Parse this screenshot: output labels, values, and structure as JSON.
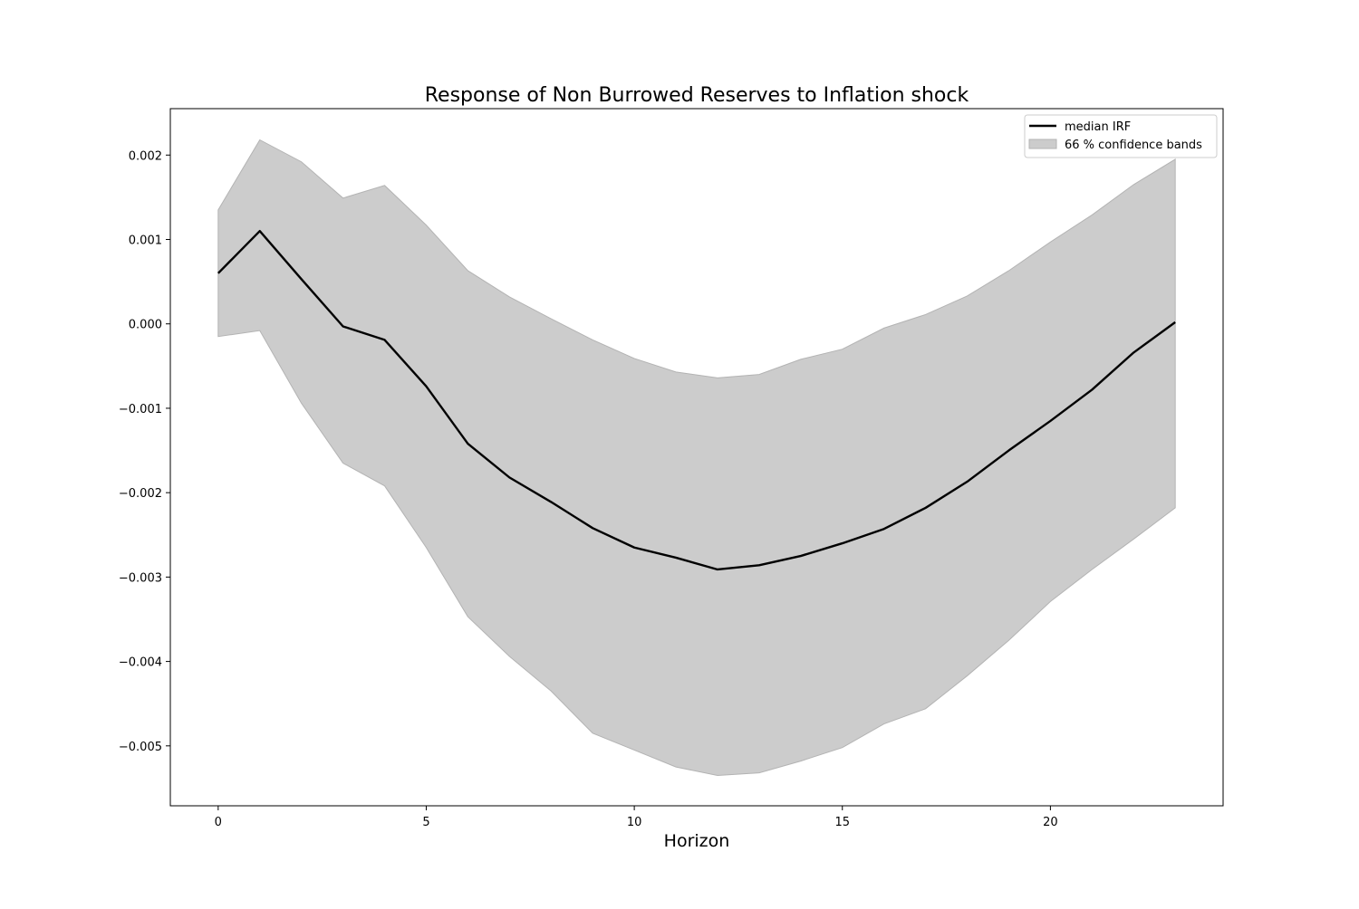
{
  "chart_data": {
    "type": "line",
    "title": "Response of Non Burrowed Reserves to Inflation shock",
    "xlabel": "Horizon",
    "ylabel": "",
    "xlim": [
      -1.15,
      24.15
    ],
    "ylim": [
      -0.00571,
      0.00255
    ],
    "xticks": [
      0,
      5,
      10,
      15,
      20
    ],
    "xtick_labels": [
      "0",
      "5",
      "10",
      "15",
      "20"
    ],
    "yticks": [
      0.002,
      0.001,
      0.0,
      -0.001,
      -0.002,
      -0.003,
      -0.004,
      -0.005
    ],
    "ytick_labels": [
      "0.002",
      "0.001",
      "0.000",
      "−0.001",
      "−0.002",
      "−0.003",
      "−0.004",
      "−0.005"
    ],
    "grid": false,
    "legend_position": "top-right",
    "legend": {
      "line_label": "median IRF",
      "band_label": "66 % confidence bands"
    },
    "x": [
      0,
      1,
      2,
      3,
      4,
      5,
      6,
      7,
      8,
      9,
      10,
      11,
      12,
      13,
      14,
      15,
      16,
      17,
      18,
      19,
      20,
      21,
      22,
      23
    ],
    "series": [
      {
        "name": "median IRF",
        "color": "#000000",
        "values": [
          0.0006,
          0.0011,
          0.00053,
          -3e-05,
          -0.00019,
          -0.00074,
          -0.00142,
          -0.00182,
          -0.00211,
          -0.00242,
          -0.00265,
          -0.00277,
          -0.00291,
          -0.00286,
          -0.00275,
          -0.0026,
          -0.00243,
          -0.00218,
          -0.00187,
          -0.0015,
          -0.00115,
          -0.00078,
          -0.00034,
          2e-05
        ]
      }
    ],
    "band": {
      "name": "66 % confidence bands",
      "color": "#cccccc",
      "edge_color": "#b3b3b3",
      "upper": [
        0.00135,
        0.00218,
        0.00192,
        0.00149,
        0.00164,
        0.00117,
        0.00063,
        0.00032,
        6e-05,
        -0.00019,
        -0.00041,
        -0.00057,
        -0.00064,
        -0.0006,
        -0.00042,
        -0.0003,
        -5e-05,
        0.00011,
        0.00033,
        0.00063,
        0.00097,
        0.00129,
        0.00165,
        0.00195
      ],
      "lower": [
        -0.00015,
        -8e-05,
        -0.00094,
        -0.00165,
        -0.00192,
        -0.00265,
        -0.00347,
        -0.00394,
        -0.00435,
        -0.00485,
        -0.00505,
        -0.00525,
        -0.00535,
        -0.00532,
        -0.00518,
        -0.00502,
        -0.00474,
        -0.00456,
        -0.00417,
        -0.00375,
        -0.00329,
        -0.00291,
        -0.00255,
        -0.00218
      ]
    }
  }
}
